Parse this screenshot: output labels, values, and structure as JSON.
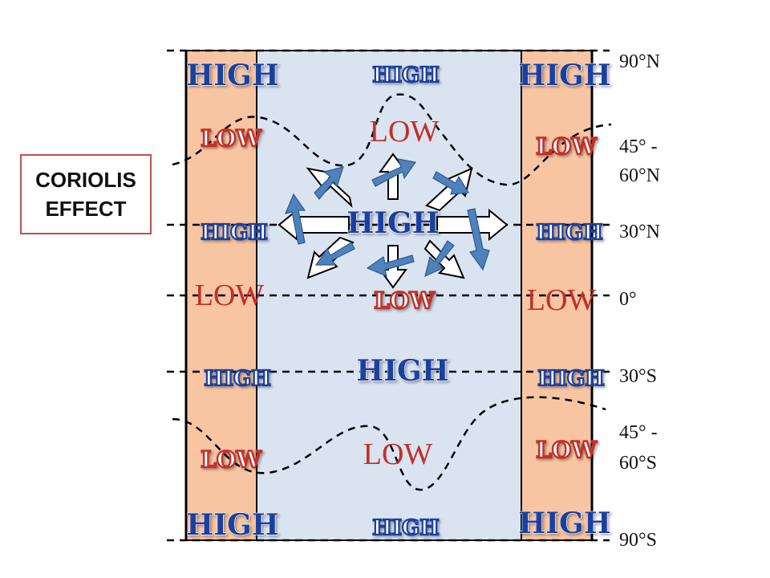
{
  "colors": {
    "zone_orange": "#f8c5a3",
    "zone_blue": "#dae4f1",
    "high_blue": "#1f3f9e",
    "low_red": "#c0302a",
    "arrow_blue": "#4f81bd"
  },
  "zone_labels": {
    "left_top_high": "HIGH",
    "mid_top_high": "HIGH",
    "right_top_high": "HIGH",
    "left_lowA": "LOW",
    "mid_lowA": "LOW",
    "right_lowA": "LOW",
    "left_high30n": "HIGH",
    "center_high30n": "HIGH",
    "right_high30n": "HIGH",
    "left_low0": "LOW",
    "mid_low0": "LOW",
    "right_low0": "LOW",
    "left_high30s": "HIGH",
    "center_high30s": "HIGH",
    "right_high30s": "HIGH",
    "left_lowB": "LOW",
    "mid_lowB": "LOW",
    "right_lowB": "LOW",
    "left_bottom_high": "HIGH",
    "mid_bottom_high": "HIGH",
    "right_bottom_high": "HIGH"
  },
  "latitudes": {
    "n90": "90°N",
    "n45_line1": "45° -",
    "n45_line2": "60°N",
    "n30": "30°N",
    "eq": "0°",
    "s30": "30°S",
    "s45_line1": "45° -",
    "s45_line2": "60°S",
    "s90": "90°S"
  },
  "coriolis": {
    "line1": "CORIOLIS",
    "line2": "EFFECT"
  }
}
